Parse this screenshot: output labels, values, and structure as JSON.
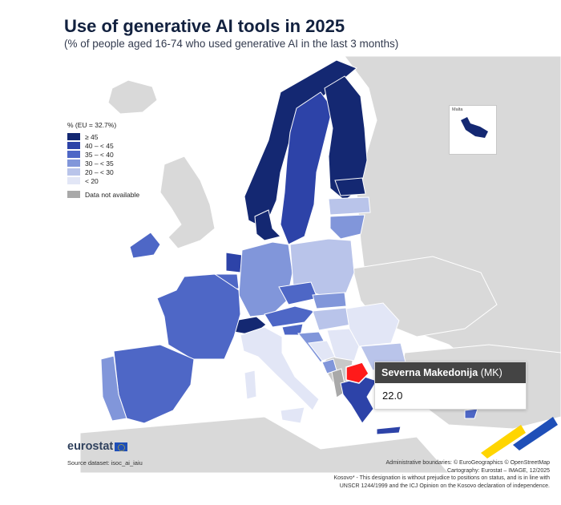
{
  "header": {
    "title": "Use of generative AI tools in 2025",
    "subtitle": "(% of people aged 16-74 who used generative AI in the last 3 months)"
  },
  "legend": {
    "title": "% (EU = 32.7%)",
    "classes": [
      {
        "label": "≥ 45",
        "color": "#142872"
      },
      {
        "label": "40 – < 45",
        "color": "#2d43a8"
      },
      {
        "label": "35 – < 40",
        "color": "#4e67c6"
      },
      {
        "label": "30 – < 35",
        "color": "#8196da"
      },
      {
        "label": "20 – < 30",
        "color": "#b9c4ea"
      },
      {
        "label": "< 20",
        "color": "#e2e6f6"
      }
    ],
    "not_available": {
      "label": "Data not available",
      "color": "#a9a9a9"
    }
  },
  "inset": {
    "label": "Malta"
  },
  "tooltip": {
    "name": "Severna Makedonija",
    "code": "(MK)",
    "value": "22.0"
  },
  "highlight_color": "#ff1a1a",
  "footer": {
    "logo": "eurostat",
    "source": "Source dataset: isoc_ai_iaiu",
    "credits": [
      "Administrative boundaries: © EuroGeographics © OpenStreetMap",
      "Cartography: Eurostat – IMAGE, 12/2025",
      "Kosovo* - This designation is without prejudice to positions on status, and is in line with",
      "UNSCR 1244/1999 and the ICJ Opinion on the Kosovo declaration of independence."
    ]
  }
}
